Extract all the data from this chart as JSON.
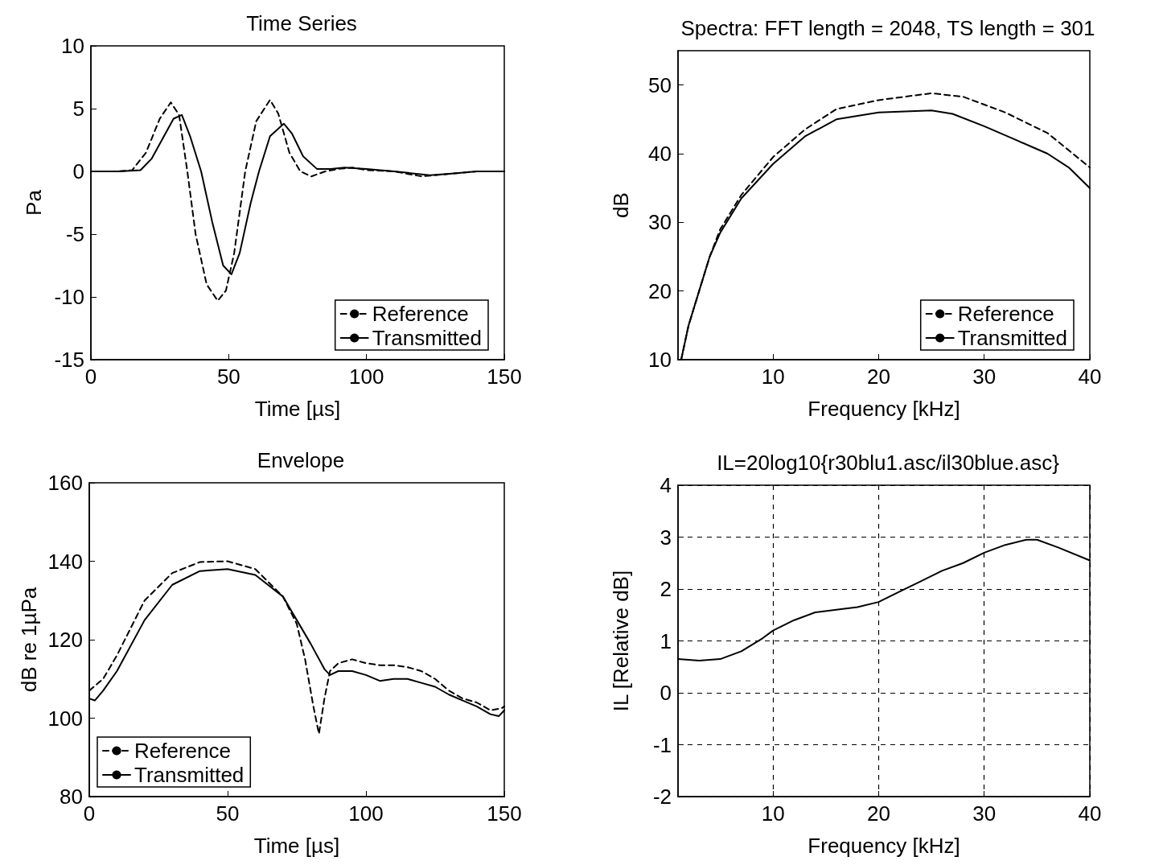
{
  "chart_data": [
    {
      "type": "line",
      "title": "Time Series",
      "xlabel": "Time [µs]",
      "ylabel": "Pa",
      "xlim": [
        0,
        150
      ],
      "xticks": [
        0,
        50,
        100,
        150
      ],
      "ylim": [
        -15,
        10
      ],
      "yticks": [
        -15,
        -10,
        -5,
        0,
        5,
        10
      ],
      "grid": false,
      "legend": "bottom right",
      "marker": "none",
      "series": [
        {
          "name": "Reference",
          "color": "#000000",
          "line_style": "dashed",
          "x": [
            0,
            10,
            15,
            20,
            25,
            29,
            32,
            35,
            38,
            42,
            46,
            49,
            52,
            56,
            60,
            65,
            68,
            72,
            76,
            80,
            85,
            90,
            95,
            100,
            110,
            120,
            125,
            130,
            140,
            150
          ],
          "values": [
            0,
            0,
            0.1,
            1.5,
            4.2,
            5.5,
            4.5,
            0,
            -5,
            -9,
            -10.3,
            -9.5,
            -6.5,
            0,
            4,
            5.7,
            4.6,
            1.5,
            0,
            -0.4,
            0,
            0.2,
            0.3,
            0.1,
            0,
            -0.4,
            -0.3,
            -0.2,
            0,
            0
          ]
        },
        {
          "name": "Transmitted",
          "color": "#000000",
          "line_style": "solid",
          "x": [
            0,
            10,
            18,
            22,
            27,
            30,
            33,
            36,
            40,
            44,
            48,
            51,
            54,
            58,
            61,
            65,
            70,
            73,
            77,
            82,
            87,
            92,
            100,
            110,
            123,
            130,
            140,
            150
          ],
          "values": [
            0,
            0,
            0.1,
            1,
            3,
            4.2,
            4.5,
            2.8,
            0,
            -4,
            -7.5,
            -8.2,
            -6.5,
            -2.5,
            0,
            2.8,
            3.8,
            3,
            1.2,
            0.2,
            0.2,
            0.3,
            0.2,
            0,
            -0.3,
            -0.2,
            0,
            0
          ]
        }
      ]
    },
    {
      "type": "line",
      "title": "Spectra: FFT length = 2048, TS length = 301",
      "xlabel": "Frequency [kHz]",
      "ylabel": "dB",
      "xlim": [
        1,
        40
      ],
      "xticks": [
        10,
        20,
        30,
        40
      ],
      "ylim": [
        10,
        55
      ],
      "yticks": [
        10,
        20,
        30,
        40,
        50
      ],
      "grid": false,
      "legend": "bottom right",
      "marker": "none",
      "series": [
        {
          "name": "Reference",
          "color": "#000000",
          "line_style": "dashed",
          "x": [
            1.3,
            2,
            3,
            4,
            5,
            7,
            10,
            13,
            16,
            20,
            25,
            28,
            32,
            36,
            40
          ],
          "values": [
            10,
            15,
            20,
            25,
            29,
            34,
            39.5,
            43.5,
            46.5,
            47.8,
            48.8,
            48.3,
            46,
            43,
            38
          ]
        },
        {
          "name": "Transmitted",
          "color": "#000000",
          "line_style": "solid",
          "x": [
            1.3,
            2,
            3,
            4,
            5,
            7,
            10,
            13,
            16,
            20,
            25,
            27,
            30,
            33,
            36,
            38,
            40
          ],
          "values": [
            10,
            15,
            20,
            25,
            28.5,
            33.5,
            38.5,
            42.5,
            45,
            46,
            46.3,
            45.8,
            44,
            42,
            40,
            38,
            35
          ]
        }
      ]
    },
    {
      "type": "line",
      "title": "Envelope",
      "xlabel": "Time [µs]",
      "ylabel": "dB re 1µPa",
      "xlim": [
        0,
        150
      ],
      "xticks": [
        0,
        50,
        100,
        150
      ],
      "ylim": [
        80,
        160
      ],
      "yticks": [
        80,
        100,
        120,
        140,
        160
      ],
      "grid": false,
      "legend": "bottom left",
      "marker": "none",
      "series": [
        {
          "name": "Reference",
          "color": "#000000",
          "line_style": "dashed",
          "x": [
            0,
            5,
            10,
            20,
            30,
            40,
            50,
            60,
            70,
            75,
            78,
            81,
            83,
            85,
            87,
            90,
            95,
            100,
            105,
            110,
            115,
            120,
            125,
            130,
            135,
            140,
            145,
            149,
            150
          ],
          "values": [
            107,
            110,
            116,
            130,
            137,
            139.8,
            140,
            138,
            131,
            124,
            115,
            103,
            96,
            105,
            112,
            114,
            115,
            114,
            113.5,
            113.5,
            113,
            112,
            110,
            107,
            105,
            104,
            102,
            102.5,
            103
          ]
        },
        {
          "name": "Transmitted",
          "color": "#000000",
          "line_style": "solid",
          "x": [
            0,
            2,
            5,
            10,
            20,
            30,
            40,
            50,
            60,
            70,
            75,
            80,
            85,
            87,
            90,
            95,
            100,
            105,
            110,
            115,
            120,
            125,
            130,
            135,
            140,
            145,
            148,
            150
          ],
          "values": [
            105,
            104.5,
            107,
            112,
            125,
            134,
            137.5,
            138,
            136.5,
            131,
            125,
            119,
            112.5,
            111,
            112,
            112,
            111,
            109.5,
            110,
            110,
            109,
            108,
            106,
            104.5,
            103,
            101,
            100.5,
            102
          ]
        }
      ]
    },
    {
      "type": "line",
      "title": "IL=20log10{r30blu1.asc/il30blue.asc}",
      "xlabel": "Frequency [kHz]",
      "ylabel": "IL [Relative dB]",
      "xlim": [
        1,
        40
      ],
      "xticks": [
        10,
        20,
        30,
        40
      ],
      "ylim": [
        -2,
        4
      ],
      "yticks": [
        -2,
        -1,
        0,
        1,
        2,
        3,
        4
      ],
      "grid": true,
      "marker": "none",
      "series": [
        {
          "color": "#000000",
          "line_style": "solid",
          "x": [
            1,
            3,
            5,
            7,
            9,
            10,
            12,
            14,
            16,
            18,
            20,
            22,
            24,
            26,
            28,
            30,
            32,
            34,
            35,
            37,
            40
          ],
          "values": [
            0.65,
            0.62,
            0.65,
            0.8,
            1.05,
            1.2,
            1.4,
            1.55,
            1.6,
            1.65,
            1.75,
            1.95,
            2.15,
            2.35,
            2.5,
            2.7,
            2.85,
            2.95,
            2.95,
            2.8,
            2.55
          ]
        }
      ]
    }
  ]
}
